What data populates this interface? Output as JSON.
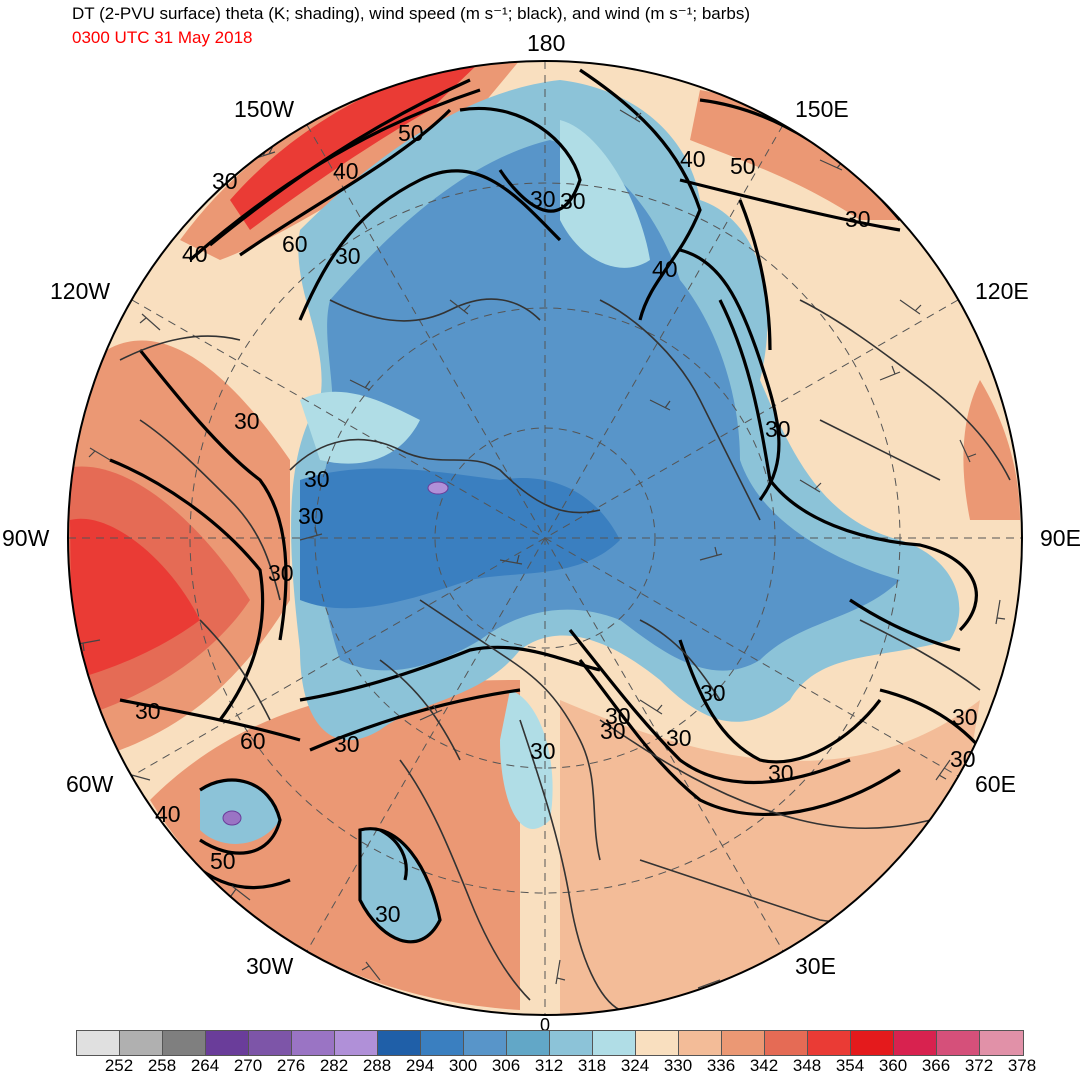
{
  "header": {
    "title": "DT (2-PVU surface) theta (K; shading), wind speed (m s⁻¹; black), and wind (m s⁻¹; barbs)",
    "valid_time": "0300 UTC 31 May 2018"
  },
  "map": {
    "projection": "north polar stereographic",
    "longitude_labels": {
      "lon_180": "180",
      "lon_150e": "150E",
      "lon_120e": "120E",
      "lon_90e": "90E",
      "lon_60e": "60E",
      "lon_30e": "30E",
      "lon_0": "0",
      "lon_30w": "30W",
      "lon_60w": "60W",
      "lon_90w": "90W",
      "lon_120w": "120W",
      "lon_150w": "150W"
    },
    "contour_labels": [
      "30",
      "40",
      "50",
      "60",
      "40",
      "30",
      "30",
      "40",
      "50",
      "40",
      "30",
      "30",
      "30",
      "30",
      "30",
      "30",
      "60",
      "30",
      "30",
      "30",
      "30",
      "30",
      "30",
      "30",
      "30",
      "40",
      "50",
      "30",
      "30",
      "30",
      "30"
    ],
    "colors": {
      "land_outline": "#333333",
      "contour": "#000000",
      "barbs": "#444444"
    }
  },
  "colorbar": {
    "labels": [
      "252",
      "258",
      "264",
      "270",
      "276",
      "282",
      "288",
      "294",
      "300",
      "306",
      "312",
      "318",
      "324",
      "330",
      "336",
      "342",
      "348",
      "354",
      "360",
      "366",
      "372",
      "378"
    ],
    "colors": [
      "#e0e0e0",
      "#b0b0b0",
      "#7f7f7f",
      "#6a3d9a",
      "#7d55a8",
      "#9a74c4",
      "#b090d8",
      "#1f5fa8",
      "#3a7fc0",
      "#5895c9",
      "#62a7c7",
      "#8cc3d8",
      "#b0dde6",
      "#f9dfbf",
      "#f3bc98",
      "#eb9874",
      "#e56b55",
      "#ea3b35",
      "#e41a1c",
      "#d8224f",
      "#d5507a",
      "#e191a8"
    ]
  }
}
